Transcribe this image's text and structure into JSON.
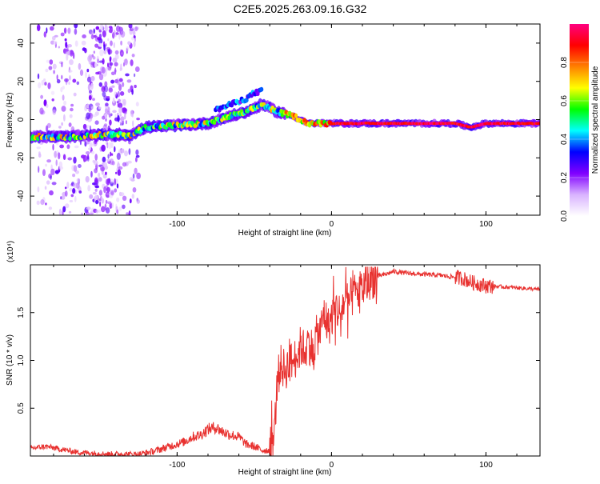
{
  "title": "C2E5.2025.263.09.16.G32",
  "chart_data": [
    {
      "type": "heatmap",
      "xlabel": "Height of straight line (km)",
      "ylabel": "Frequency (Hz)",
      "xlim": [
        -195,
        135
      ],
      "ylim": [
        -50,
        50
      ],
      "xticks": [
        -100,
        0,
        100
      ],
      "yticks": [
        -40,
        -20,
        0,
        20,
        40
      ],
      "grid": false,
      "colorbar": {
        "label": "Normalized spectral amplitude",
        "ticks": [
          "0.0",
          "0.2",
          "0.4",
          "0.6",
          "0.8"
        ],
        "tick_values": [
          0,
          0.2,
          0.4,
          0.6,
          0.8
        ],
        "range": [
          0,
          1
        ],
        "colors": [
          "#ffffff",
          "#d9b3ff",
          "#8000ff",
          "#0000ff",
          "#00ffff",
          "#00ff00",
          "#ffff00",
          "#ff8000",
          "#ff0000",
          "#ff0080"
        ]
      },
      "ridge": {
        "x": [
          -195,
          -170,
          -150,
          -130,
          -120,
          -100,
          -80,
          -65,
          -55,
          -50,
          -45,
          -40,
          -35,
          -25,
          -20,
          -15,
          -10,
          0,
          20,
          40,
          60,
          80,
          85,
          90,
          95,
          100,
          110,
          120,
          135
        ],
        "y": [
          -9,
          -9,
          -8,
          -8,
          -4,
          -3,
          -2,
          2,
          4,
          6,
          8,
          6,
          4,
          2,
          0,
          -2,
          -2,
          -2,
          -2,
          -2,
          -2,
          -2,
          -3,
          -4,
          -3,
          -2,
          -2,
          -2,
          -2
        ]
      },
      "upper_branch": {
        "x": [
          -75,
          -65,
          -55,
          -50,
          -45
        ],
        "y": [
          5,
          8,
          11,
          14,
          15
        ]
      },
      "noise_region_km": [
        -190,
        -125
      ]
    },
    {
      "type": "line",
      "xlabel": "Height of straight line (km)",
      "ylabel": "SNR (10 * v/v)",
      "scale_label": "(x10⁴)",
      "xlim": [
        -195,
        135
      ],
      "ylim": [
        0,
        2.0
      ],
      "xticks": [
        -100,
        0,
        100
      ],
      "yticks": [
        0.5,
        1.0,
        1.5
      ],
      "ytick_labels": [
        "0.5",
        "1.0",
        "1.5"
      ],
      "grid": false,
      "series": [
        {
          "name": "SNR",
          "color": "#e8312f",
          "x": [
            -195,
            -185,
            -175,
            -165,
            -155,
            -145,
            -135,
            -125,
            -115,
            -105,
            -95,
            -90,
            -85,
            -80,
            -75,
            -70,
            -65,
            -60,
            -55,
            -50,
            -45,
            -40,
            -37,
            -35,
            -33,
            -30,
            -28,
            -25,
            -22,
            -20,
            -17,
            -15,
            -12,
            -10,
            -7,
            -5,
            -2,
            0,
            3,
            5,
            8,
            10,
            15,
            20,
            25,
            30,
            35,
            40,
            45,
            50,
            60,
            70,
            80,
            85,
            90,
            95,
            100,
            110,
            120,
            135
          ],
          "y": [
            0.08,
            0.1,
            0.07,
            0.04,
            0.03,
            0.02,
            0.02,
            0.02,
            0.05,
            0.1,
            0.15,
            0.2,
            0.22,
            0.28,
            0.3,
            0.25,
            0.22,
            0.2,
            0.12,
            0.1,
            0.06,
            0.06,
            0.25,
            0.8,
            0.95,
            0.9,
            0.95,
            1.0,
            1.05,
            1.15,
            1.1,
            1.2,
            1.1,
            1.25,
            1.3,
            1.5,
            1.35,
            1.45,
            1.55,
            1.5,
            1.6,
            1.6,
            1.7,
            1.75,
            1.85,
            1.88,
            1.9,
            1.93,
            1.92,
            1.91,
            1.9,
            1.89,
            1.87,
            1.86,
            1.82,
            1.8,
            1.78,
            1.77,
            1.76,
            1.74
          ]
        }
      ]
    }
  ]
}
